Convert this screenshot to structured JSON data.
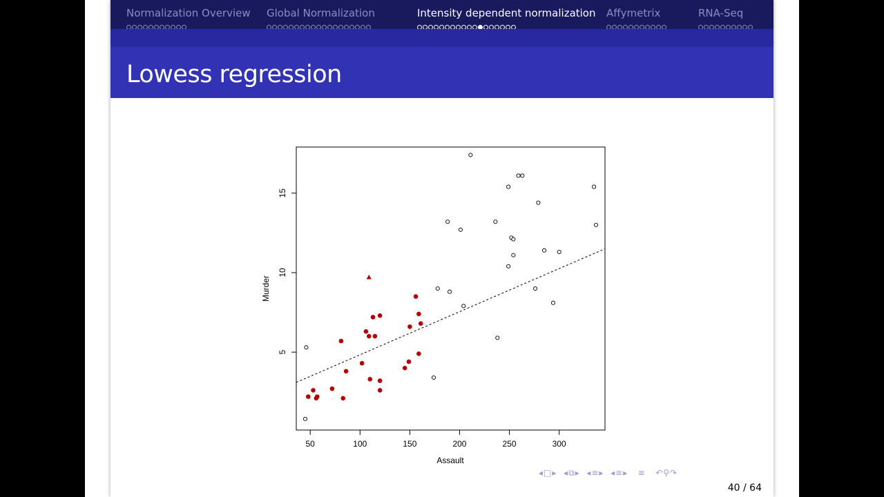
{
  "nav": {
    "sections": [
      {
        "label": "Normalization Overview",
        "dots": 11,
        "current_dot": null,
        "active": false
      },
      {
        "label": "Global Normalization",
        "dots": 19,
        "current_dot": null,
        "active": false
      },
      {
        "label": "Intensity dependent normalization",
        "dots": 18,
        "current_dot": 12,
        "active": true
      },
      {
        "label": "Affymetrix",
        "dots": 11,
        "current_dot": null,
        "active": false
      },
      {
        "label": "RNA-Seq",
        "dots": 10,
        "current_dot": null,
        "active": false
      }
    ]
  },
  "slide": {
    "title": "Lowess regression",
    "page_current": "40",
    "page_total": "64",
    "page_label": "40 / 64"
  },
  "beamer_nav_icons": [
    "nav-prev-icon",
    "frame-icon",
    "nav-next-icon",
    "nav-prev-icon",
    "subsection-icon",
    "nav-next-icon",
    "nav-prev-icon",
    "section-icon",
    "nav-next-icon",
    "nav-prev-icon",
    "doc-icon",
    "nav-next-icon",
    "align-icon",
    "undo-icon",
    "search-icon",
    "redo-icon"
  ],
  "chart_data": {
    "type": "scatter",
    "xlabel": "Assault",
    "ylabel": "Murder",
    "xlim": [
      36,
      346
    ],
    "ylim": [
      0.1,
      17.9
    ],
    "xticks": [
      50,
      100,
      150,
      200,
      250,
      300
    ],
    "yticks": [
      5,
      10,
      15
    ],
    "grid": false,
    "colors": {
      "highlight": "#b40000",
      "open": "#000000"
    },
    "series": [
      {
        "marker": "open-circle",
        "x": [
          211,
          263,
          335,
          337,
          249,
          259,
          279,
          188,
          201,
          236,
          252,
          254,
          285,
          300,
          254,
          249,
          276,
          294,
          178,
          190,
          204,
          238,
          174,
          46,
          45
        ],
        "y": [
          17.4,
          16.1,
          15.4,
          13.0,
          15.4,
          16.1,
          14.4,
          13.2,
          12.7,
          13.2,
          12.2,
          12.1,
          11.4,
          11.3,
          11.1,
          10.4,
          9.0,
          8.1,
          9.0,
          8.8,
          7.9,
          5.9,
          3.4,
          5.3,
          0.8
        ]
      },
      {
        "marker": "filled-circle",
        "x": [
          156,
          159,
          113,
          120,
          161,
          106,
          109,
          115,
          150,
          81,
          159,
          102,
          86,
          149,
          145,
          110,
          120,
          120,
          72,
          53,
          48,
          57,
          56,
          83
        ],
        "y": [
          8.5,
          7.4,
          7.2,
          7.3,
          6.8,
          6.3,
          6.0,
          6.0,
          6.6,
          5.7,
          4.9,
          4.3,
          3.8,
          4.4,
          4.0,
          3.3,
          3.2,
          2.6,
          2.7,
          2.6,
          2.2,
          2.2,
          2.1,
          2.1
        ]
      },
      {
        "marker": "filled-triangle",
        "x": [
          109
        ],
        "y": [
          9.7
        ]
      }
    ],
    "fit_line": {
      "style": "dashed",
      "x": [
        36,
        346
      ],
      "y": [
        3.1,
        11.5
      ]
    }
  }
}
